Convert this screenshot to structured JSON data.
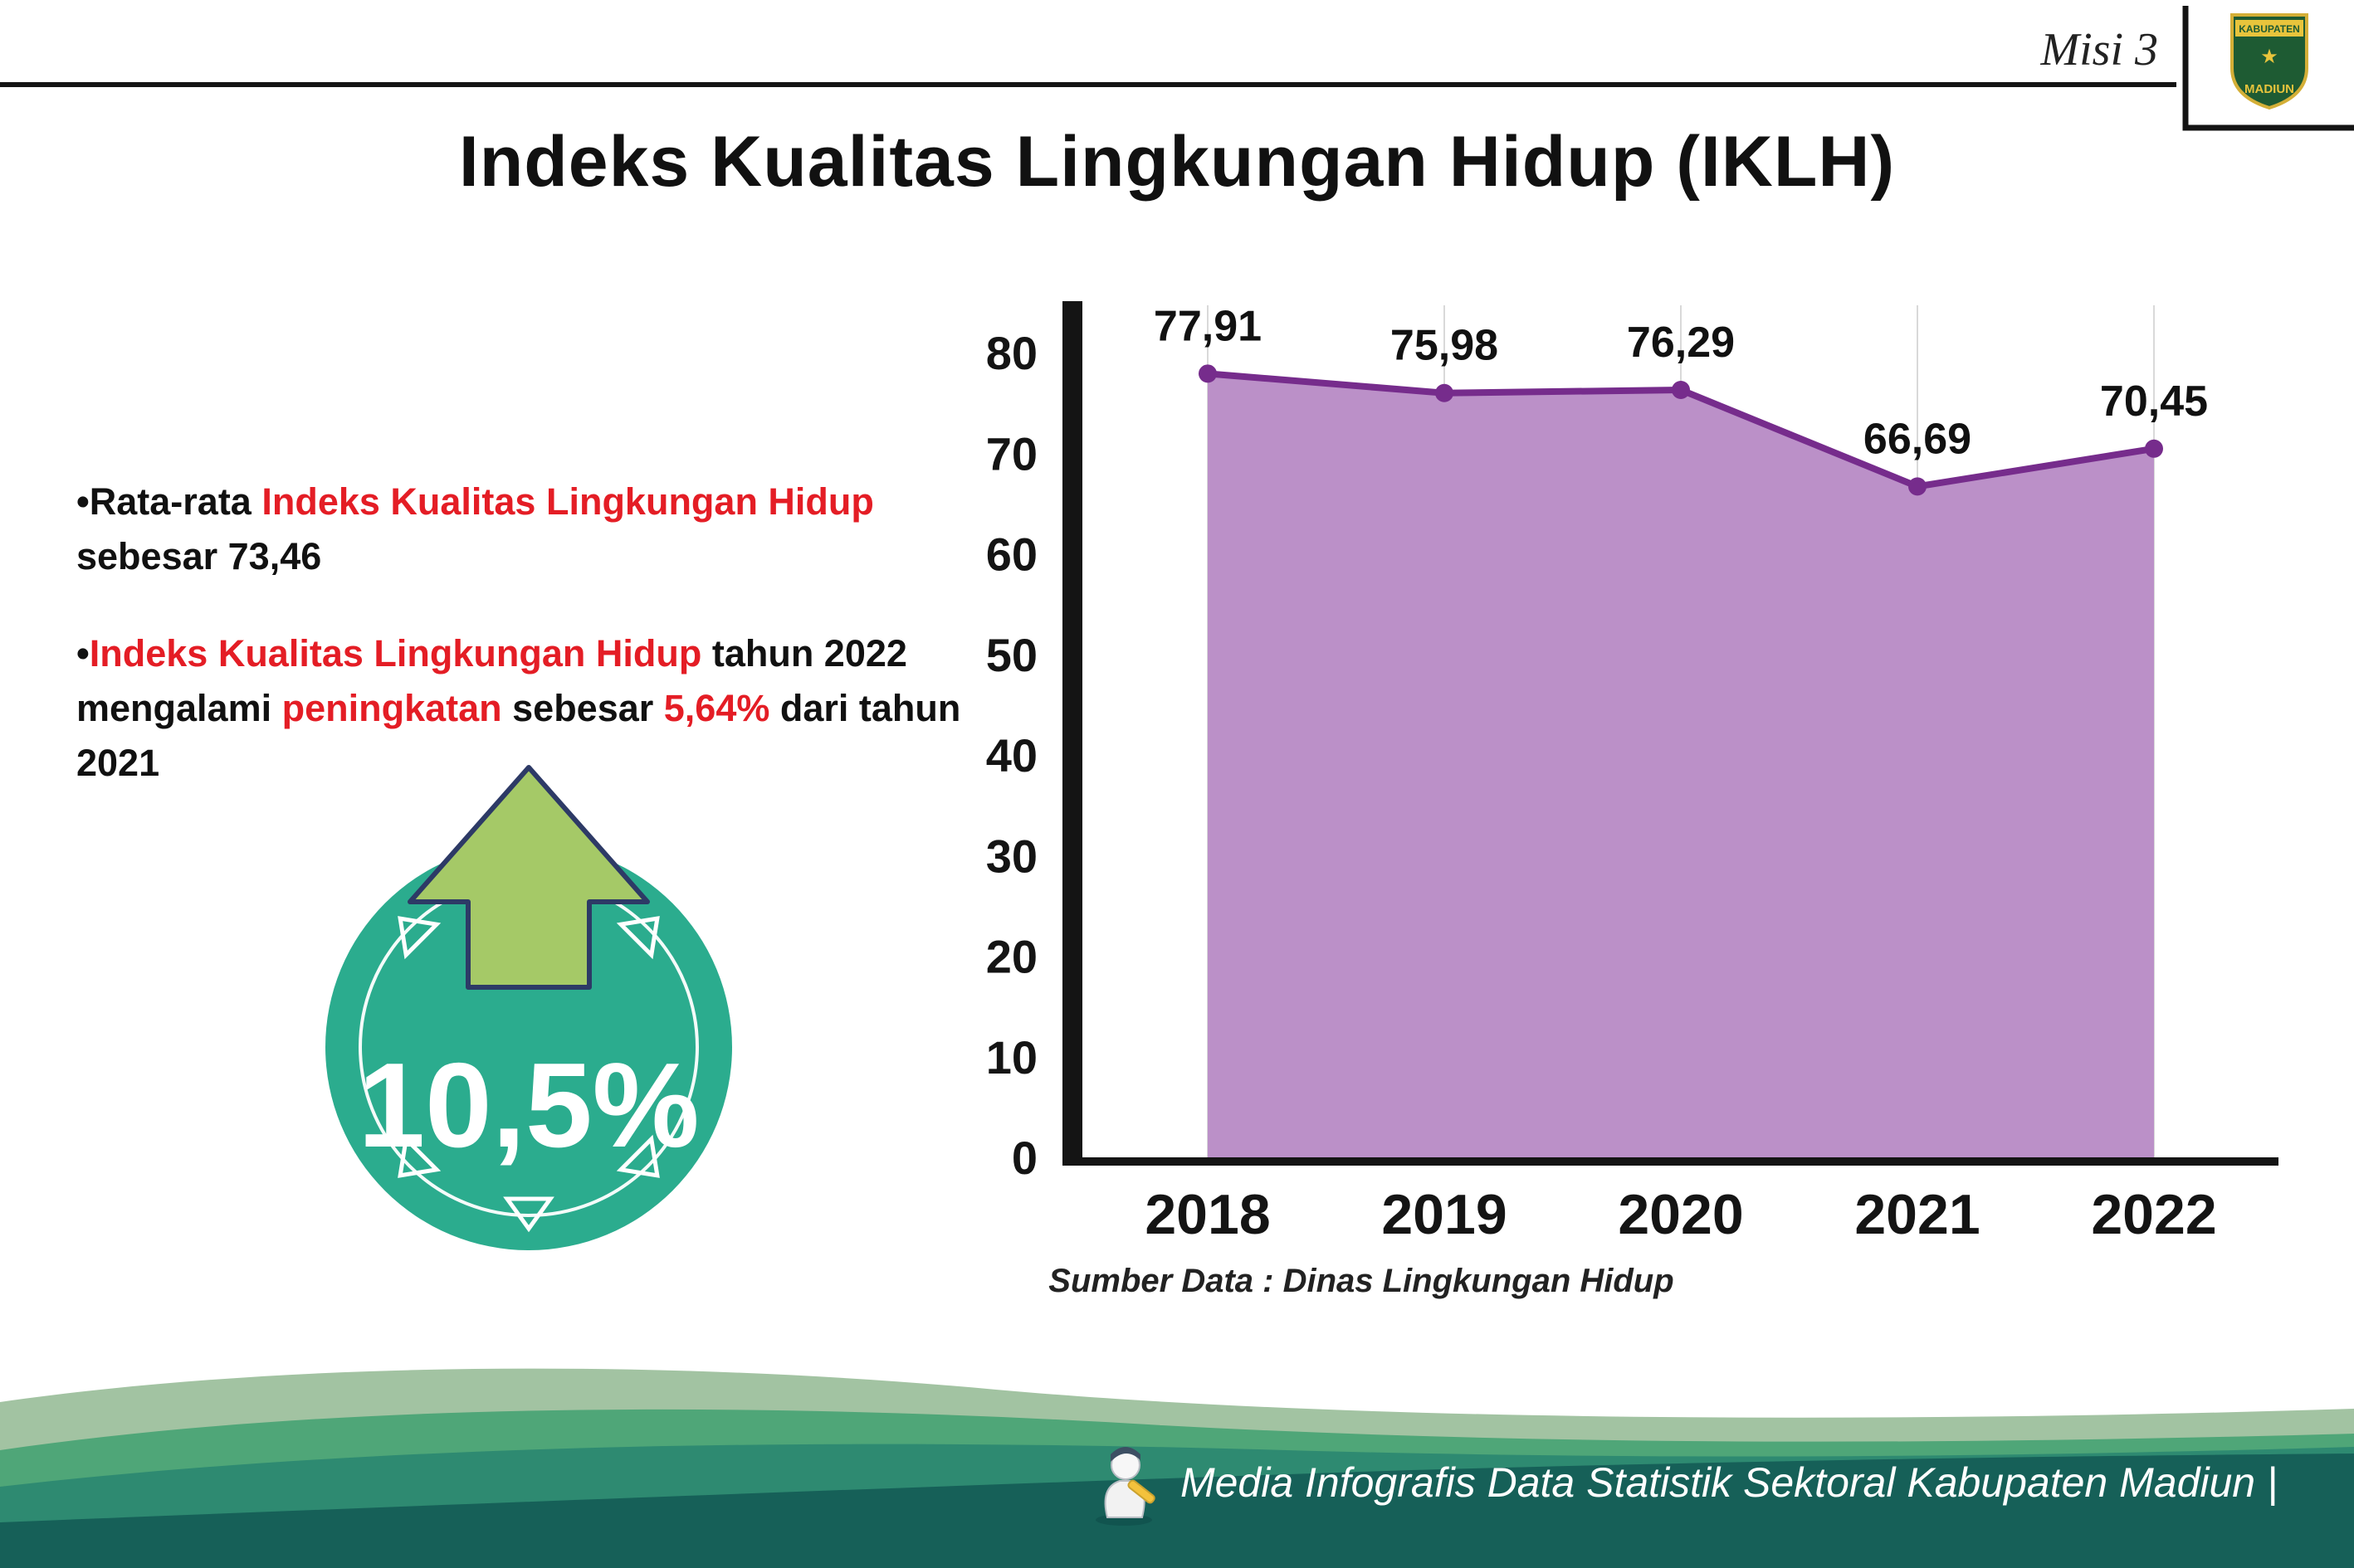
{
  "header": {
    "misi_label": "Misi 3",
    "title": "Indeks Kualitas Lingkungan Hidup (IKLH)",
    "logo": {
      "top_text": "KABUPATEN",
      "bottom_text": "MADIUN"
    }
  },
  "bullets": [
    {
      "segments": [
        {
          "text": "•Rata-rata ",
          "color": "black"
        },
        {
          "text": "Indeks Kualitas Lingkungan Hidup",
          "color": "red"
        },
        {
          "text": " sebesar 73,46",
          "color": "black"
        }
      ]
    },
    {
      "segments": [
        {
          "text": "•",
          "color": "black"
        },
        {
          "text": "Indeks Kualitas Lingkungan Hidup",
          "color": "red"
        },
        {
          "text": " tahun 2022 mengalami ",
          "color": "black"
        },
        {
          "text": "peningkatan",
          "color": "red"
        },
        {
          "text": " sebesar ",
          "color": "black"
        },
        {
          "text": "5,64%",
          "color": "red"
        },
        {
          "text": " dari tahun 2021",
          "color": "black"
        }
      ]
    }
  ],
  "badge": {
    "value": "10,5%",
    "icon": "up-arrow-icon",
    "circle_color": "#2bac8e",
    "arrow_color": "#a5c967",
    "arrow_outline": "#2d3a66"
  },
  "chart_data": {
    "type": "area",
    "title": "",
    "categories": [
      "2018",
      "2019",
      "2020",
      "2021",
      "2022"
    ],
    "values": [
      77.91,
      75.98,
      76.29,
      66.69,
      70.45
    ],
    "point_labels": [
      "77,91",
      "75,98",
      "76,29",
      "66,69",
      "70,45"
    ],
    "ylim": [
      0,
      80
    ],
    "yticks": [
      0,
      10,
      20,
      30,
      40,
      50,
      60,
      70,
      80
    ],
    "grid": "vertical",
    "legend": "none",
    "line_color": "#762c8c",
    "fill_color": "#bb90c8",
    "grid_color": "#d9d9d9",
    "axis_color": "#141414",
    "source_label": "Sumber Data : Dinas Lingkungan Hidup"
  },
  "footer": {
    "text": "Media Infografis Data Statistik Sektoral Kabupaten Madiun |",
    "mascot": "writer-mascot-icon",
    "wave_colors": [
      "#a2c3a2",
      "#4fa678",
      "#2e8a71",
      "#166058"
    ]
  },
  "colors": {
    "accent_red": "#e41d25",
    "text_black": "#111111"
  }
}
